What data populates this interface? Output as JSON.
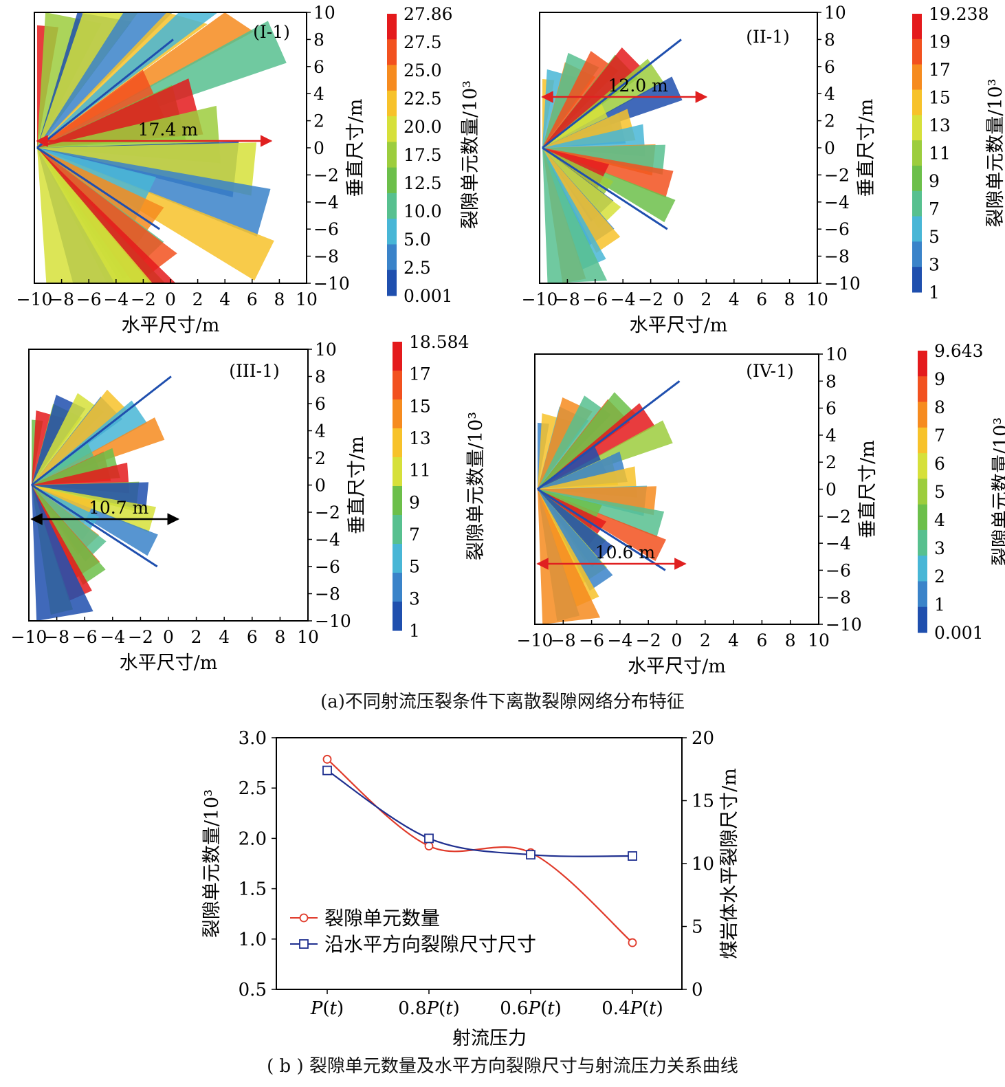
{
  "panels": [
    {
      "id": "I-1",
      "label": "(I-1)",
      "annotation": "17.4 m",
      "arrow_length_m": 17.4,
      "colorbar": {
        "title": "裂隙单元数量/10³",
        "ticks": [
          "27.86",
          "27.5",
          "25.0",
          "22.5",
          "20.0",
          "17.5",
          "12.5",
          "10.0",
          "5.0",
          "2.5",
          "0.001"
        ]
      },
      "xlabel": "水平尺寸/m",
      "ylabel": "垂直尺寸/m"
    },
    {
      "id": "II-1",
      "label": "(II-1)",
      "annotation": "12.0 m",
      "arrow_length_m": 12.0,
      "colorbar": {
        "title": "裂隙单元数量/10³",
        "ticks": [
          "19.238",
          "19",
          "17",
          "15",
          "13",
          "11",
          "9",
          "7",
          "5",
          "3",
          "1"
        ]
      },
      "xlabel": "水平尺寸/m",
      "ylabel": "垂直尺寸/m"
    },
    {
      "id": "III-1",
      "label": "(III-1)",
      "annotation": "10.7 m",
      "arrow_length_m": 10.7,
      "colorbar": {
        "title": "裂隙单元数量/10³",
        "ticks": [
          "18.584",
          "17",
          "15",
          "13",
          "11",
          "9",
          "7",
          "5",
          "3",
          "1"
        ]
      },
      "xlabel": "水平尺寸/m",
      "ylabel": "垂直尺寸/m"
    },
    {
      "id": "IV-1",
      "label": "(IV-1)",
      "annotation": "10.6 m",
      "arrow_length_m": 10.6,
      "colorbar": {
        "title": "裂隙单元数量/10³",
        "ticks": [
          "9.643",
          "9",
          "8",
          "7",
          "6",
          "5",
          "4",
          "3",
          "2",
          "1",
          "0.001"
        ]
      },
      "xlabel": "水平尺寸/m",
      "ylabel": "垂直尺寸/m"
    }
  ],
  "axis_ticks": [
    "−10",
    "−8",
    "−6",
    "−4",
    "−2",
    "0",
    "2",
    "4",
    "6",
    "8",
    "10"
  ],
  "caption_a": "(a)不同射流压裂条件下离散裂隙网络分布特征",
  "caption_b": "( b ) 裂隙单元数量及水平方向裂隙尺寸与射流压力关系曲线",
  "chart_data": {
    "type": "line",
    "categories": [
      "P(t)",
      "0.8P(t)",
      "0.6P(t)",
      "0.4P(t)"
    ],
    "xlabel": "射流压力",
    "ylabel_left": "裂隙单元数量/10³",
    "ylabel_right": "煤岩体水平裂隙尺寸/m",
    "ylim_left": [
      0.5,
      3.0
    ],
    "ylim_right": [
      0,
      20
    ],
    "yticks_left": [
      "3.0",
      "2.5",
      "2.0",
      "1.5",
      "1.0",
      "0.5"
    ],
    "yticks_right": [
      "20",
      "15",
      "10",
      "5",
      "0"
    ],
    "legend_position": "lower-left",
    "series": [
      {
        "name": "裂隙单元数量",
        "axis": "left",
        "marker": "circle",
        "color": "#e03a2a",
        "values": [
          2.786,
          1.924,
          1.858,
          0.964
        ]
      },
      {
        "name": "沿水平方向裂隙尺寸尺寸",
        "axis": "right",
        "marker": "square",
        "color": "#1f2f8f",
        "values": [
          17.4,
          12.0,
          10.7,
          10.6
        ]
      }
    ]
  }
}
